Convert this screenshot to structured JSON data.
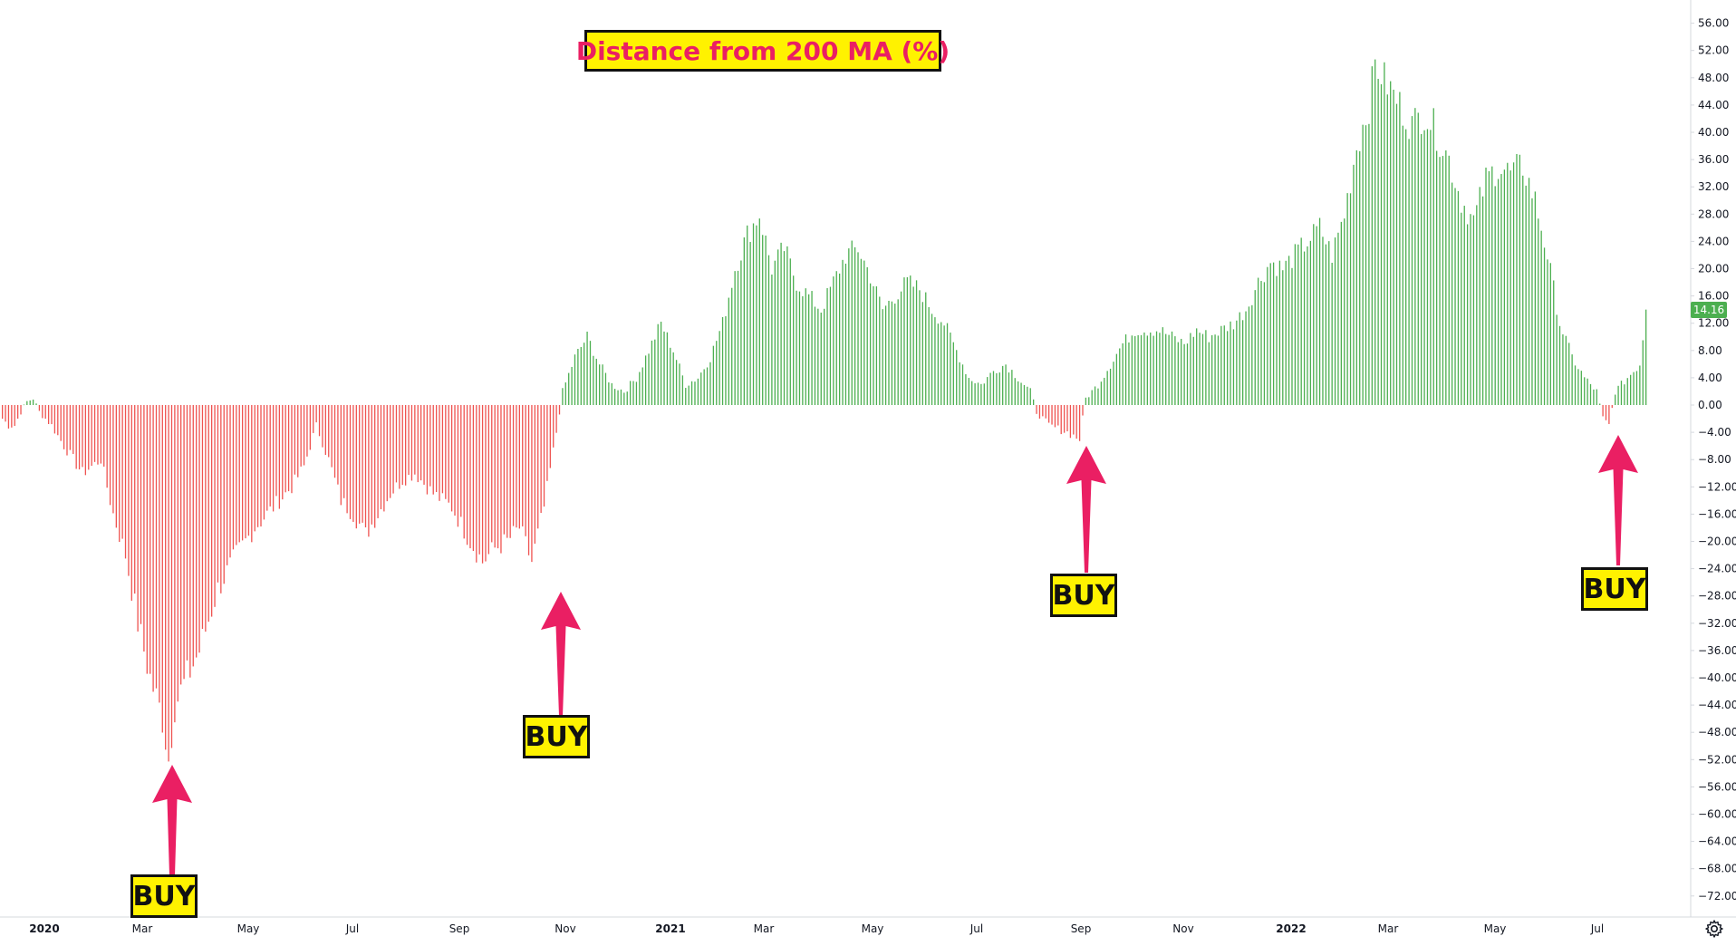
{
  "chart_data": {
    "type": "bar",
    "title": "Distance from 200 MA (%)",
    "xlabel": "",
    "ylabel": "",
    "ylim": [
      -74,
      58
    ],
    "yticks": [
      "56.00",
      "52.00",
      "48.00",
      "44.00",
      "40.00",
      "36.00",
      "32.00",
      "28.00",
      "24.00",
      "20.00",
      "16.00",
      "12.00",
      "8.00",
      "4.00",
      "0.00",
      "−4.00",
      "−8.00",
      "−12.00",
      "−16.00",
      "−20.00",
      "−24.00",
      "−28.00",
      "−32.00",
      "−36.00",
      "−40.00",
      "−44.00",
      "−48.00",
      "−52.00",
      "−56.00",
      "−60.00",
      "−64.00",
      "−68.00",
      "−72.00"
    ],
    "x_labels": [
      {
        "text": "2020",
        "bold": true
      },
      {
        "text": "Mar",
        "bold": false
      },
      {
        "text": "May",
        "bold": false
      },
      {
        "text": "Jul",
        "bold": false
      },
      {
        "text": "Sep",
        "bold": false
      },
      {
        "text": "Nov",
        "bold": false
      },
      {
        "text": "2021",
        "bold": true
      },
      {
        "text": "Mar",
        "bold": false
      },
      {
        "text": "May",
        "bold": false
      },
      {
        "text": "Jul",
        "bold": false
      },
      {
        "text": "Sep",
        "bold": false
      },
      {
        "text": "Nov",
        "bold": false
      },
      {
        "text": "2022",
        "bold": true
      },
      {
        "text": "Mar",
        "bold": false
      },
      {
        "text": "May",
        "bold": false
      },
      {
        "text": "Jul",
        "bold": false
      }
    ],
    "last_value_label": "14.16",
    "positive_color": "#4caf50",
    "negative_color": "#ef5350",
    "keypoints": [
      [
        0,
        -2
      ],
      [
        1,
        -3
      ],
      [
        2,
        -3
      ],
      [
        3,
        -1
      ],
      [
        4,
        0.5
      ],
      [
        5,
        1
      ],
      [
        6,
        -1
      ],
      [
        8,
        -3
      ],
      [
        10,
        -6
      ],
      [
        13,
        -10
      ],
      [
        16,
        -8
      ],
      [
        18,
        -16
      ],
      [
        20,
        -22
      ],
      [
        22,
        -32
      ],
      [
        24,
        -40
      ],
      [
        26,
        -46
      ],
      [
        27,
        -52
      ],
      [
        28,
        -44
      ],
      [
        30,
        -40
      ],
      [
        32,
        -36
      ],
      [
        35,
        -27
      ],
      [
        38,
        -22
      ],
      [
        41,
        -18
      ],
      [
        44,
        -15
      ],
      [
        47,
        -12
      ],
      [
        49,
        -9
      ],
      [
        51,
        -3
      ],
      [
        53,
        -8
      ],
      [
        55,
        -14
      ],
      [
        57,
        -16
      ],
      [
        59,
        -19
      ],
      [
        61,
        -16
      ],
      [
        63,
        -13
      ],
      [
        65,
        -11
      ],
      [
        67,
        -10
      ],
      [
        70,
        -13
      ],
      [
        73,
        -15
      ],
      [
        76,
        -20
      ],
      [
        78,
        -23
      ],
      [
        80,
        -21
      ],
      [
        82,
        -20
      ],
      [
        84,
        -18
      ],
      [
        86,
        -23
      ],
      [
        88,
        -15
      ],
      [
        90,
        -4
      ],
      [
        91,
        2
      ],
      [
        93,
        7
      ],
      [
        95,
        10
      ],
      [
        97,
        6
      ],
      [
        99,
        3
      ],
      [
        101,
        2
      ],
      [
        103,
        4
      ],
      [
        105,
        8
      ],
      [
        107,
        12
      ],
      [
        109,
        8
      ],
      [
        111,
        3
      ],
      [
        113,
        4
      ],
      [
        115,
        7
      ],
      [
        117,
        12
      ],
      [
        119,
        20
      ],
      [
        121,
        25
      ],
      [
        123,
        28
      ],
      [
        125,
        20
      ],
      [
        127,
        23
      ],
      [
        129,
        18
      ],
      [
        131,
        16
      ],
      [
        133,
        14
      ],
      [
        135,
        18
      ],
      [
        137,
        22
      ],
      [
        139,
        23
      ],
      [
        141,
        19
      ],
      [
        143,
        14
      ],
      [
        145,
        16
      ],
      [
        147,
        18
      ],
      [
        149,
        17
      ],
      [
        151,
        14
      ],
      [
        153,
        12
      ],
      [
        155,
        8
      ],
      [
        157,
        4
      ],
      [
        159,
        3
      ],
      [
        161,
        5
      ],
      [
        163,
        6
      ],
      [
        165,
        4
      ],
      [
        167,
        2
      ],
      [
        168,
        -1
      ],
      [
        170,
        -3
      ],
      [
        173,
        -4
      ],
      [
        175,
        -5
      ],
      [
        176,
        1
      ],
      [
        178,
        3
      ],
      [
        180,
        6
      ],
      [
        182,
        9
      ],
      [
        184,
        11
      ],
      [
        186,
        11
      ],
      [
        188,
        11
      ],
      [
        190,
        10
      ],
      [
        192,
        9
      ],
      [
        194,
        11
      ],
      [
        196,
        10
      ],
      [
        198,
        11
      ],
      [
        200,
        12
      ],
      [
        202,
        14
      ],
      [
        204,
        18
      ],
      [
        206,
        21
      ],
      [
        208,
        20
      ],
      [
        210,
        22
      ],
      [
        212,
        24
      ],
      [
        214,
        26
      ],
      [
        216,
        22
      ],
      [
        218,
        28
      ],
      [
        220,
        38
      ],
      [
        222,
        44
      ],
      [
        223,
        50
      ],
      [
        225,
        47
      ],
      [
        227,
        44
      ],
      [
        229,
        41
      ],
      [
        231,
        43
      ],
      [
        233,
        40
      ],
      [
        235,
        36
      ],
      [
        237,
        30
      ],
      [
        239,
        27
      ],
      [
        241,
        33
      ],
      [
        243,
        35
      ],
      [
        245,
        34
      ],
      [
        247,
        35
      ],
      [
        249,
        30
      ],
      [
        251,
        22
      ],
      [
        253,
        12
      ],
      [
        255,
        7
      ],
      [
        257,
        4
      ],
      [
        259,
        2
      ],
      [
        260,
        -2
      ],
      [
        261,
        -3
      ],
      [
        262,
        2
      ],
      [
        264,
        4
      ],
      [
        266,
        6
      ],
      [
        267,
        14
      ]
    ]
  },
  "annotations": [
    {
      "label": "BUY"
    },
    {
      "label": "BUY"
    },
    {
      "label": "BUY"
    },
    {
      "label": "BUY"
    }
  ],
  "colors": {
    "arrow": "#ea1f63",
    "label_bg": "#fff200",
    "title_text": "#ea1f63"
  }
}
